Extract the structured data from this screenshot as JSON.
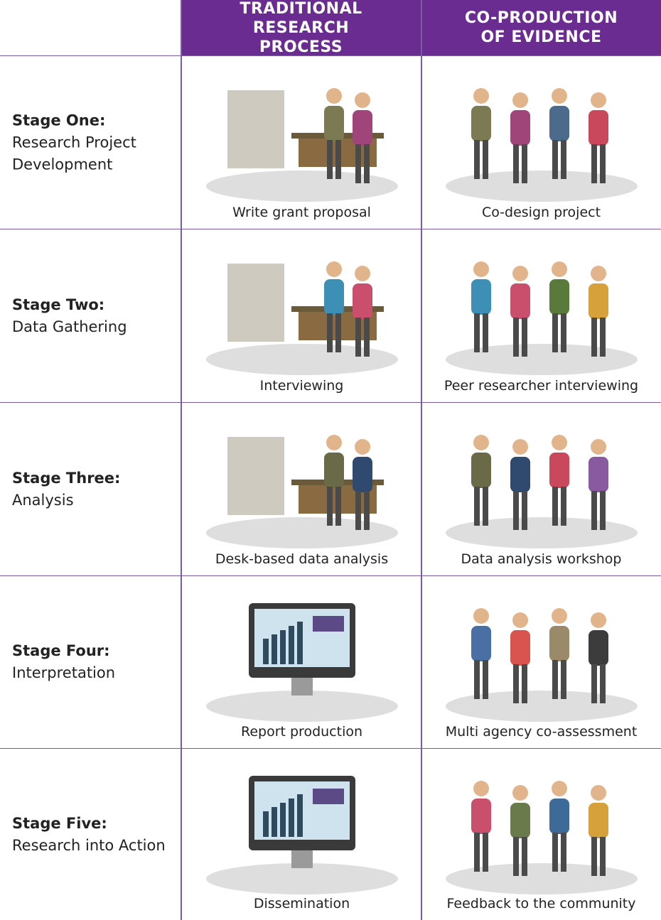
{
  "header": {
    "columns": [
      "TRADITIONAL RESEARCH PROCESS",
      "CO-PRODUCTION OF EVIDENCE"
    ]
  },
  "rows": [
    {
      "stage": "Stage One:",
      "description": "Research Project Development",
      "traditional": "Write grant proposal",
      "coproduction": "Co-design project"
    },
    {
      "stage": "Stage Two:",
      "description": "Data Gathering",
      "traditional": "Interviewing",
      "coproduction": "Peer researcher interviewing"
    },
    {
      "stage": "Stage Three:",
      "description": "Analysis",
      "traditional": "Desk-based data analysis",
      "coproduction": "Data analysis workshop"
    },
    {
      "stage": "Stage Four:",
      "description": "Interpretation",
      "traditional": "Report production",
      "coproduction": "Multi agency co-assessment"
    },
    {
      "stage": "Stage Five:",
      "description": "Research into Action",
      "traditional": "Dissemination",
      "coproduction": "Feedback to the community"
    }
  ]
}
